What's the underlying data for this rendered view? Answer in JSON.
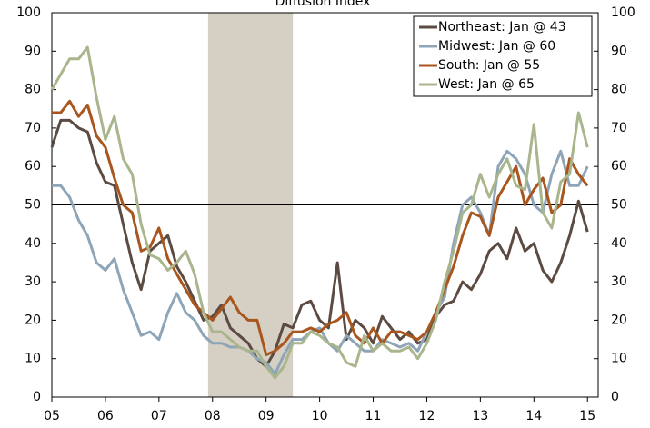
{
  "chart_data": {
    "type": "line",
    "title": "Diffusion Index",
    "x": [
      2005,
      2005.167,
      2005.333,
      2005.5,
      2005.667,
      2005.833,
      2006,
      2006.167,
      2006.333,
      2006.5,
      2006.667,
      2006.833,
      2007,
      2007.167,
      2007.333,
      2007.5,
      2007.667,
      2007.833,
      2008,
      2008.167,
      2008.333,
      2008.5,
      2008.667,
      2008.833,
      2009,
      2009.167,
      2009.333,
      2009.5,
      2009.667,
      2009.833,
      2010,
      2010.167,
      2010.333,
      2010.5,
      2010.667,
      2010.833,
      2011,
      2011.167,
      2011.333,
      2011.5,
      2011.667,
      2011.833,
      2012,
      2012.167,
      2012.333,
      2012.5,
      2012.667,
      2012.833,
      2013,
      2013.167,
      2013.333,
      2013.5,
      2013.667,
      2013.833,
      2014,
      2014.167,
      2014.333,
      2014.5,
      2014.667,
      2014.833,
      2015
    ],
    "series": [
      {
        "name": "Northeast: Jan @ 43",
        "color": "#5b4b43",
        "values": [
          65,
          72,
          72,
          70,
          69,
          61,
          56,
          55,
          45,
          35,
          28,
          38,
          40,
          42,
          34,
          30,
          25,
          20,
          21,
          24,
          18,
          16,
          14,
          10,
          8,
          12,
          19,
          18,
          24,
          25,
          20,
          18,
          35,
          15,
          20,
          18,
          14,
          21,
          18,
          15,
          17,
          14,
          15,
          21,
          24,
          25,
          30,
          28,
          32,
          38,
          40,
          36,
          44,
          38,
          40,
          33,
          30,
          35,
          42,
          51,
          43
        ]
      },
      {
        "name": "Midwest: Jan @ 60",
        "color": "#8ea5b8",
        "values": [
          55,
          55,
          52,
          46,
          42,
          35,
          33,
          36,
          28,
          22,
          16,
          17,
          15,
          22,
          27,
          22,
          20,
          16,
          14,
          14,
          13,
          13,
          12,
          10,
          9,
          6,
          11,
          15,
          15,
          17,
          18,
          14,
          12,
          16,
          14,
          12,
          12,
          15,
          14,
          13,
          14,
          12,
          17,
          22,
          26,
          40,
          50,
          52,
          48,
          42,
          60,
          64,
          62,
          58,
          50,
          48,
          58,
          64,
          55,
          55,
          60
        ]
      },
      {
        "name": "South: Jan @ 55",
        "color": "#a8561e",
        "values": [
          74,
          74,
          77,
          73,
          76,
          68,
          65,
          57,
          50,
          48,
          38,
          39,
          44,
          36,
          32,
          28,
          24,
          22,
          20,
          23,
          26,
          22,
          20,
          20,
          11,
          12,
          14,
          17,
          17,
          18,
          17,
          19,
          20,
          22,
          16,
          14,
          18,
          14,
          17,
          17,
          16,
          15,
          17,
          22,
          28,
          34,
          42,
          48,
          47,
          42,
          52,
          56,
          60,
          50,
          54,
          57,
          48,
          50,
          62,
          58,
          55
        ]
      },
      {
        "name": "West: Jan @ 65",
        "color": "#a9b58c",
        "values": [
          80,
          84,
          88,
          88,
          91,
          78,
          67,
          73,
          62,
          58,
          45,
          37,
          36,
          33,
          35,
          38,
          32,
          22,
          17,
          17,
          15,
          13,
          12,
          12,
          8,
          5,
          8,
          14,
          14,
          17,
          16,
          14,
          13,
          9,
          8,
          16,
          12,
          14,
          12,
          12,
          13,
          10,
          14,
          20,
          30,
          38,
          48,
          50,
          58,
          52,
          58,
          62,
          55,
          54,
          71,
          48,
          44,
          56,
          58,
          74,
          65
        ]
      }
    ],
    "xlim": [
      2005,
      2015.2
    ],
    "xticks": [
      {
        "value": 2005,
        "label": "05"
      },
      {
        "value": 2006,
        "label": "06"
      },
      {
        "value": 2007,
        "label": "07"
      },
      {
        "value": 2008,
        "label": "08"
      },
      {
        "value": 2009,
        "label": "09"
      },
      {
        "value": 2010,
        "label": "10"
      },
      {
        "value": 2011,
        "label": "11"
      },
      {
        "value": 2012,
        "label": "12"
      },
      {
        "value": 2013,
        "label": "13"
      },
      {
        "value": 2014,
        "label": "14"
      },
      {
        "value": 2015,
        "label": "15"
      }
    ],
    "ylim": [
      0,
      100
    ],
    "yticks": [
      0,
      10,
      20,
      30,
      40,
      50,
      60,
      70,
      80,
      90,
      100
    ],
    "y2lim": [
      0,
      100
    ],
    "y2ticks": [
      0,
      10,
      20,
      30,
      40,
      50,
      60,
      70,
      80,
      90,
      100
    ],
    "shaded_region": [
      2007.917,
      2009.5
    ],
    "shade_color": "#d6cfc3",
    "reference_line": 50,
    "legend": "upper right"
  }
}
